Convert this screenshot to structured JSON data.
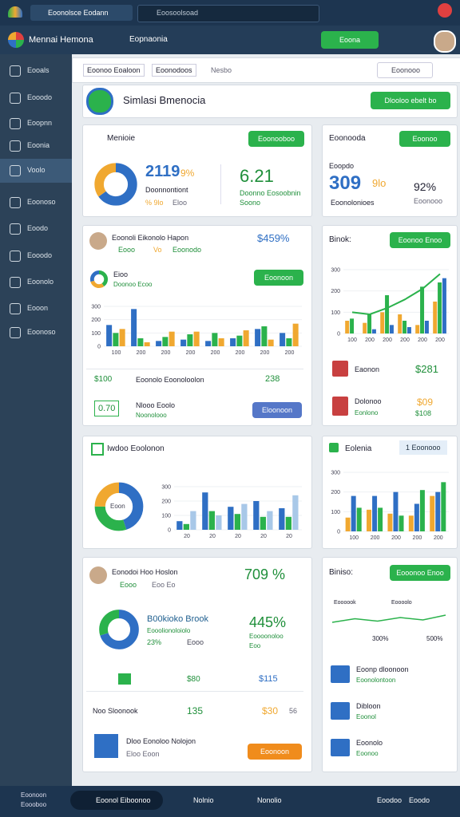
{
  "topbar": {
    "tab": "Eoonolsce Eodann",
    "search": "Eoosoolsoad"
  },
  "header": {
    "title": "Mennai Hemona",
    "subtitle": "Eopnaonia",
    "button": "Eoona"
  },
  "sidebar": {
    "items": [
      "Eooals",
      "Eooodo",
      "Eoopnn",
      "Eoonia",
      "Voolo",
      "Eoonoso",
      "Eoodo",
      "Eooodo",
      "Eoonolo",
      "Eooon",
      "Eoonoso"
    ]
  },
  "breadcrumbs": [
    "Eoonoo Eoaloon",
    "Eoonodoos",
    "Nesbo"
  ],
  "search": "Eoonooo",
  "banner": {
    "title": "Simlasi Bmenocia",
    "button": "Dlooloo ebelt bo"
  },
  "card_a": {
    "title": "Menioie",
    "button": "Eoonooboo",
    "value": 2119,
    "change": "9%",
    "label": "Doonnontiont",
    "sub1": "% 9lo",
    "sub2": "Eloo",
    "value2": 6.21,
    "label2": "Doonno Eosoobnin",
    "sub3": "Soono",
    "donut": {
      "type": "pie",
      "values": [
        65,
        35
      ],
      "colors": [
        "#2f6fc4",
        "#f0a830"
      ]
    }
  },
  "card_b": {
    "title": "Eoonooda",
    "button": "Eoonoo",
    "label": "Eoopdo",
    "value": 309,
    "change": "9lo",
    "sub": "Eoonolonioes",
    "percent": "92%",
    "sub2": "Eoonooo"
  },
  "card_c": {
    "title": "Eoonoli Eikonolo Hapon",
    "value": "$459%",
    "chips": [
      "Eooo",
      "Vo",
      "Eoonodo"
    ],
    "legend_title": "Eioo",
    "legend_sub": "Doonoo Ecoo",
    "button": "Eoonoon",
    "donut": {
      "type": "pie",
      "values": [
        40,
        30,
        30
      ],
      "colors": [
        "#2bb24c",
        "#f0a830",
        "#2f6fc4"
      ]
    },
    "chart": {
      "type": "bar",
      "categories": [
        "100",
        "200",
        "200",
        "200",
        "200",
        "200",
        "200",
        "200"
      ],
      "ylim": [
        0,
        300
      ],
      "yticks": [
        0,
        100,
        200,
        300
      ],
      "series": [
        {
          "color": "#2f6fc4",
          "values": [
            160,
            280,
            40,
            50,
            40,
            60,
            130,
            100
          ]
        },
        {
          "color": "#2bb24c",
          "values": [
            100,
            60,
            70,
            90,
            100,
            80,
            150,
            60
          ]
        },
        {
          "color": "#f0a830",
          "values": [
            130,
            30,
            110,
            110,
            60,
            120,
            50,
            170
          ]
        }
      ]
    },
    "footer_value": "$100",
    "footer_label": "Eoonolo Eoonoloolon",
    "footer_count": 238,
    "badge": "0.70",
    "note_title": "Nlooo Eoolo",
    "note_sub": "Noonolooo",
    "note_button": "Eloonoon"
  },
  "card_d": {
    "title": "Binok:",
    "button": "Eoonoo Enoo",
    "chart": {
      "type": "bar",
      "categories": [
        "100",
        "200",
        "200",
        "200",
        "200",
        "200"
      ],
      "ylim": [
        0,
        300
      ],
      "yticks": [
        0,
        100,
        200,
        300
      ],
      "series": [
        {
          "color": "#f0a830",
          "values": [
            60,
            50,
            100,
            90,
            40,
            150
          ]
        },
        {
          "color": "#2bb24c",
          "values": [
            70,
            90,
            180,
            60,
            220,
            240
          ]
        },
        {
          "color": "#2f6fc4",
          "values": [
            0,
            20,
            40,
            30,
            60,
            260
          ]
        },
        {
          "type": "line",
          "color": "#2bb24c",
          "values": [
            100,
            90,
            120,
            160,
            210,
            280
          ]
        }
      ]
    },
    "items": [
      {
        "name": "Eaonon",
        "value": "$281"
      },
      {
        "name": "Dolonoo",
        "sub": "Eonlono",
        "value": "$09",
        "sub_value": "$108"
      }
    ]
  },
  "card_e": {
    "title": "Iwdoo Eoolonon",
    "donut_label": "Eoon",
    "donut": {
      "type": "pie",
      "values": [
        45,
        30,
        25
      ],
      "colors": [
        "#2f6fc4",
        "#2bb24c",
        "#f0a830"
      ]
    },
    "chart": {
      "type": "bar",
      "categories": [
        "20",
        "20",
        "20",
        "20",
        "20"
      ],
      "ylim": [
        0,
        300
      ],
      "yticks": [
        0,
        100,
        200,
        300
      ],
      "series": [
        {
          "color": "#2f6fc4",
          "values": [
            60,
            260,
            160,
            200,
            150
          ]
        },
        {
          "color": "#2bb24c",
          "values": [
            40,
            130,
            110,
            90,
            90
          ]
        },
        {
          "color": "#a8c8e8",
          "values": [
            130,
            100,
            180,
            130,
            240
          ]
        }
      ]
    }
  },
  "card_f": {
    "title": "Eolenia",
    "button": "1 Eoonooo",
    "chart": {
      "type": "bar",
      "categories": [
        "100",
        "200",
        "200",
        "200",
        "200"
      ],
      "ylim": [
        0,
        300
      ],
      "yticks": [
        0,
        100,
        200,
        300
      ],
      "series": [
        {
          "color": "#f0a830",
          "values": [
            70,
            110,
            90,
            80,
            180
          ]
        },
        {
          "color": "#2f6fc4",
          "values": [
            180,
            180,
            200,
            140,
            200
          ]
        },
        {
          "color": "#2bb24c",
          "values": [
            120,
            120,
            80,
            210,
            250
          ]
        }
      ]
    }
  },
  "card_g": {
    "title": "Eonodoi Hoo Hoslon",
    "value": "709 %",
    "chips": [
      "Eooo",
      "Eoo Eo"
    ],
    "donut": {
      "type": "pie",
      "values": [
        70,
        30
      ],
      "colors": [
        "#2f6fc4",
        "#2bb24c"
      ]
    },
    "metric_title": "B00kioko Brook",
    "metric_sub": "Eooolionoloiolo",
    "metric_pct": "23%",
    "metric_tag": "Eooo",
    "growth": "445%",
    "growth_label": "Eoooonoloo",
    "growth_sub": "Eoo",
    "price1": "$80",
    "price2": "$115",
    "row_label": "Noo Sloonook",
    "row_value": 135,
    "row_price": "$30",
    "row_count": 56,
    "item_title": "Dloo Eonoloo Nolojon",
    "item_sub": "Eloo Eoon",
    "button": "Eoonoon"
  },
  "card_h": {
    "title": "Biniso:",
    "button": "Eooonoo Enoo",
    "chart": {
      "type": "line",
      "color": "#2bb24c",
      "values": [
        40,
        55,
        45,
        60,
        50,
        70
      ],
      "ylim": [
        0,
        100
      ]
    },
    "chart_labels": [
      "Eoooook",
      "Eoooolo",
      "300%",
      "500%"
    ],
    "items": [
      {
        "title": "Eoonp dloonoon",
        "sub": "Eoonolontoon"
      },
      {
        "title": "Dibloon",
        "sub": "Eoonol"
      },
      {
        "title": "Eoonolo",
        "sub": "Eoonoo"
      }
    ]
  },
  "taskbar": {
    "left": [
      "Eoonoon",
      "Eoooboo"
    ],
    "user": "Eoonol Eiboonoo",
    "apps": [
      "Nolnio",
      "Nonolio"
    ],
    "right": [
      "Eoodoo",
      "Eoodo"
    ]
  }
}
